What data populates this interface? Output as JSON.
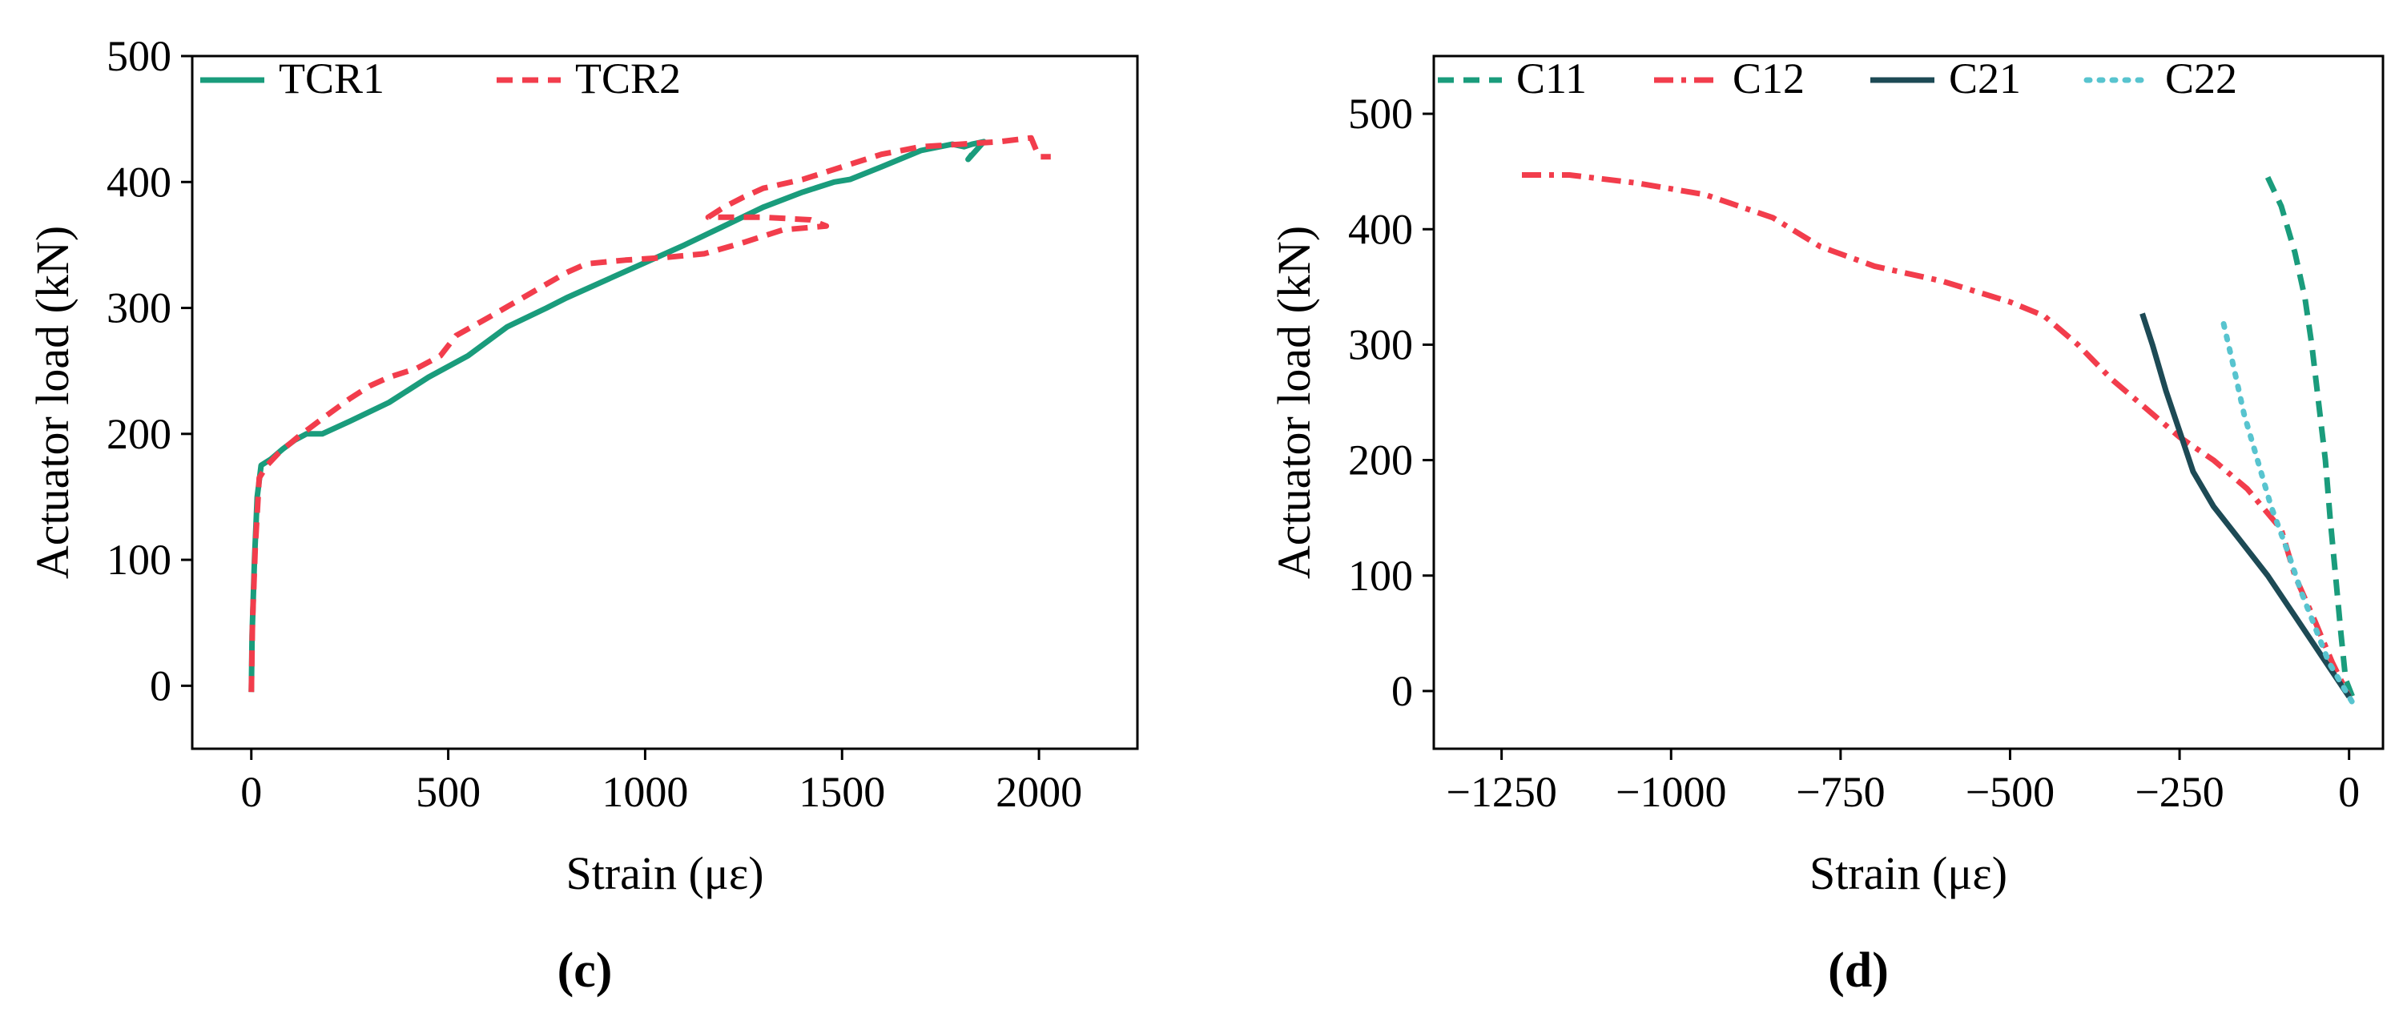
{
  "chart_data": [
    {
      "type": "line",
      "panel_label": "(c)",
      "xlabel": "Strain (με)",
      "ylabel": "Actuator load (kN)",
      "xlim": [
        -150,
        2250
      ],
      "ylim": [
        -50,
        500
      ],
      "xticks": [
        0,
        500,
        1000,
        1500,
        2000
      ],
      "yticks": [
        0,
        100,
        200,
        300,
        400,
        500
      ],
      "legend_position": "top-left",
      "series": [
        {
          "name": "TCR1",
          "color": "#1a9c7c",
          "dash": "solid",
          "points": [
            [
              0,
              -5
            ],
            [
              2,
              40
            ],
            [
              8,
              100
            ],
            [
              15,
              150
            ],
            [
              25,
              175
            ],
            [
              50,
              180
            ],
            [
              80,
              188
            ],
            [
              110,
              195
            ],
            [
              140,
              200
            ],
            [
              180,
              200
            ],
            [
              250,
              210
            ],
            [
              350,
              225
            ],
            [
              450,
              245
            ],
            [
              550,
              262
            ],
            [
              650,
              285
            ],
            [
              750,
              300
            ],
            [
              800,
              308
            ],
            [
              900,
              322
            ],
            [
              1000,
              336
            ],
            [
              1100,
              350
            ],
            [
              1200,
              365
            ],
            [
              1300,
              380
            ],
            [
              1400,
              392
            ],
            [
              1480,
              400
            ],
            [
              1520,
              402
            ],
            [
              1600,
              412
            ],
            [
              1700,
              425
            ],
            [
              1780,
              430
            ],
            [
              1810,
              428
            ],
            [
              1830,
              430
            ],
            [
              1860,
              432
            ],
            [
              1840,
              425
            ],
            [
              1820,
              418
            ],
            [
              1830,
              422
            ]
          ]
        },
        {
          "name": "TCR2",
          "color": "#f23d4c",
          "dash": "dashed",
          "points": [
            [
              0,
              -5
            ],
            [
              3,
              50
            ],
            [
              10,
              110
            ],
            [
              20,
              165
            ],
            [
              40,
              175
            ],
            [
              70,
              185
            ],
            [
              120,
              198
            ],
            [
              180,
              212
            ],
            [
              250,
              228
            ],
            [
              300,
              238
            ],
            [
              350,
              245
            ],
            [
              420,
              252
            ],
            [
              480,
              262
            ],
            [
              520,
              278
            ],
            [
              600,
              292
            ],
            [
              700,
              310
            ],
            [
              800,
              328
            ],
            [
              850,
              335
            ],
            [
              950,
              338
            ],
            [
              1050,
              340
            ],
            [
              1150,
              343
            ],
            [
              1250,
              352
            ],
            [
              1350,
              362
            ],
            [
              1460,
              365
            ],
            [
              1420,
              370
            ],
            [
              1300,
              372
            ],
            [
              1160,
              372
            ],
            [
              1200,
              380
            ],
            [
              1250,
              388
            ],
            [
              1300,
              395
            ],
            [
              1400,
              402
            ],
            [
              1500,
              412
            ],
            [
              1600,
              422
            ],
            [
              1700,
              428
            ],
            [
              1800,
              430
            ],
            [
              1900,
              432
            ],
            [
              1980,
              435
            ],
            [
              2000,
              420
            ],
            [
              2030,
              420
            ]
          ]
        }
      ]
    },
    {
      "type": "line",
      "panel_label": "(d)",
      "xlabel": "Strain (με)",
      "ylabel": "Actuator load (kN)",
      "xlim": [
        -1350,
        50
      ],
      "ylim": [
        -50,
        550
      ],
      "xticks": [
        -1250,
        -1000,
        -750,
        -500,
        -250,
        0
      ],
      "xtick_labels": [
        "−1250",
        "−1000",
        "−750",
        "−500",
        "−250",
        "0"
      ],
      "yticks": [
        0,
        100,
        200,
        300,
        400,
        500
      ],
      "legend_position": "top",
      "series": [
        {
          "name": "C11",
          "color": "#1a9c7c",
          "dash": "dashed",
          "points": [
            [
              -120,
              445
            ],
            [
              -100,
              420
            ],
            [
              -80,
              380
            ],
            [
              -65,
              340
            ],
            [
              -55,
              300
            ],
            [
              -45,
              250
            ],
            [
              -35,
              200
            ],
            [
              -28,
              150
            ],
            [
              -20,
              100
            ],
            [
              -12,
              50
            ],
            [
              -5,
              10
            ],
            [
              5,
              -5
            ]
          ]
        },
        {
          "name": "C12",
          "color": "#f23d4c",
          "dash": "dashdot",
          "points": [
            [
              -1220,
              447
            ],
            [
              -1150,
              447
            ],
            [
              -1050,
              440
            ],
            [
              -950,
              430
            ],
            [
              -850,
              410
            ],
            [
              -780,
              385
            ],
            [
              -700,
              368
            ],
            [
              -600,
              355
            ],
            [
              -500,
              337
            ],
            [
              -450,
              325
            ],
            [
              -400,
              300
            ],
            [
              -350,
              270
            ],
            [
              -300,
              245
            ],
            [
              -250,
              220
            ],
            [
              -200,
              200
            ],
            [
              -150,
              175
            ],
            [
              -100,
              140
            ],
            [
              -80,
              100
            ],
            [
              -50,
              60
            ],
            [
              -25,
              25
            ],
            [
              0,
              -5
            ]
          ]
        },
        {
          "name": "C21",
          "color": "#1d4a55",
          "dash": "solid",
          "points": [
            [
              -305,
              327
            ],
            [
              -290,
              300
            ],
            [
              -270,
              260
            ],
            [
              -250,
              225
            ],
            [
              -230,
              190
            ],
            [
              -200,
              160
            ],
            [
              -160,
              130
            ],
            [
              -120,
              100
            ],
            [
              -80,
              65
            ],
            [
              -40,
              30
            ],
            [
              0,
              -5
            ]
          ]
        },
        {
          "name": "C22",
          "color": "#58c4cf",
          "dash": "dotted",
          "points": [
            [
              -185,
              318
            ],
            [
              -170,
              280
            ],
            [
              -155,
              240
            ],
            [
              -135,
              200
            ],
            [
              -115,
              160
            ],
            [
              -90,
              120
            ],
            [
              -70,
              85
            ],
            [
              -50,
              55
            ],
            [
              -30,
              25
            ],
            [
              -10,
              5
            ],
            [
              5,
              -10
            ]
          ]
        }
      ]
    }
  ]
}
